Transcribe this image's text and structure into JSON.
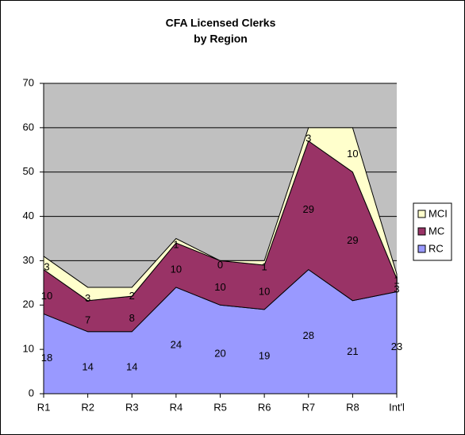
{
  "chart_data": {
    "type": "stacked_area",
    "title": "CFA Licensed Clerks",
    "subtitle": "by Region",
    "categories": [
      "R1",
      "R2",
      "R3",
      "R4",
      "R5",
      "R6",
      "R7",
      "R8",
      "Int'l"
    ],
    "series": [
      {
        "name": "RC",
        "color": "#9999ff",
        "values": [
          18,
          14,
          14,
          24,
          20,
          19,
          28,
          21,
          23
        ]
      },
      {
        "name": "MC",
        "color": "#993366",
        "values": [
          10,
          7,
          8,
          10,
          10,
          10,
          29,
          29,
          3
        ]
      },
      {
        "name": "MCI",
        "color": "#ffffcc",
        "values": [
          3,
          3,
          2,
          1,
          0,
          1,
          3,
          10,
          1
        ]
      }
    ],
    "ylim": [
      0,
      70
    ],
    "yticks": [
      0,
      10,
      20,
      30,
      40,
      50,
      60,
      70
    ],
    "grid": true,
    "plot_color": "#c0c0c0",
    "legend": "right"
  }
}
